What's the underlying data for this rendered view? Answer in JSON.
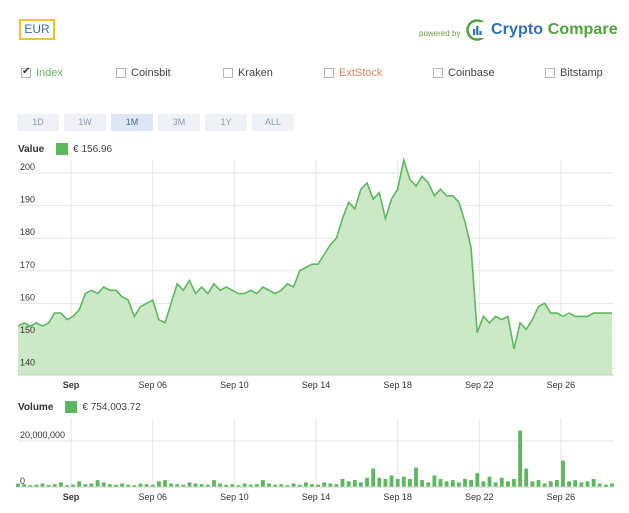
{
  "currency": "EUR",
  "powered_by": "powered by",
  "brand": {
    "part1": "Crypto",
    "part2": "Compare"
  },
  "exchanges": [
    {
      "label": "Index",
      "checked": true,
      "color": "#5cb85c"
    },
    {
      "label": "Coinsbit",
      "checked": false,
      "color": "#444444"
    },
    {
      "label": "Kraken",
      "checked": false,
      "color": "#444444"
    },
    {
      "label": "ExtStock",
      "checked": false,
      "color": "#e8825a"
    },
    {
      "label": "Coinbase",
      "checked": false,
      "color": "#444444"
    },
    {
      "label": "Bitstamp",
      "checked": false,
      "color": "#444444"
    }
  ],
  "ranges": [
    {
      "label": "1D",
      "active": false
    },
    {
      "label": "1W",
      "active": false
    },
    {
      "label": "1M",
      "active": true
    },
    {
      "label": "3M",
      "active": false
    },
    {
      "label": "1Y",
      "active": false
    },
    {
      "label": "ALL",
      "active": false
    }
  ],
  "value_legend": {
    "label": "Value",
    "value": "€  156.96"
  },
  "volume_legend": {
    "label": "Volume",
    "value": "€  754,003.72"
  },
  "chart_data": [
    {
      "type": "area",
      "name": "price",
      "ylim": [
        138,
        204
      ],
      "yticks": [
        140,
        150,
        160,
        170,
        180,
        190,
        200
      ],
      "xlim": [
        -1.6,
        27.6
      ],
      "xticks": [
        {
          "label": "Sep",
          "x": 1
        },
        {
          "label": "Sep 06",
          "x": 5
        },
        {
          "label": "Sep 10",
          "x": 9
        },
        {
          "label": "Sep 14",
          "x": 13
        },
        {
          "label": "Sep 18",
          "x": 17
        },
        {
          "label": "Sep 22",
          "x": 21
        },
        {
          "label": "Sep 26",
          "x": 25
        }
      ],
      "grid": true,
      "x": [
        -1.6,
        -1.3,
        -1.0,
        -0.7,
        -0.4,
        -0.1,
        0.2,
        0.5,
        0.8,
        1.1,
        1.4,
        1.7,
        2.0,
        2.3,
        2.6,
        2.9,
        3.2,
        3.5,
        3.8,
        4.1,
        4.4,
        4.7,
        5.0,
        5.3,
        5.6,
        5.9,
        6.2,
        6.5,
        6.8,
        7.1,
        7.4,
        7.7,
        8.0,
        8.3,
        8.6,
        8.9,
        9.2,
        9.5,
        9.8,
        10.1,
        10.4,
        10.7,
        11.0,
        11.3,
        11.6,
        11.9,
        12.2,
        12.5,
        12.8,
        13.1,
        13.4,
        13.7,
        14.0,
        14.3,
        14.6,
        14.9,
        15.2,
        15.5,
        15.8,
        16.1,
        16.4,
        16.7,
        17.0,
        17.3,
        17.6,
        17.9,
        18.2,
        18.5,
        18.8,
        19.1,
        19.4,
        19.7,
        20.0,
        20.3,
        20.6,
        20.9,
        21.2,
        21.5,
        21.8,
        22.1,
        22.4,
        22.7,
        23.0,
        23.3,
        23.6,
        23.9,
        24.2,
        24.5,
        24.8,
        25.1,
        25.4,
        25.7,
        26.0,
        26.3,
        26.6,
        26.9,
        27.2,
        27.5
      ],
      "values": [
        153,
        154,
        153,
        154,
        153,
        154,
        157,
        157,
        155,
        156,
        158,
        163,
        164,
        163,
        165,
        164,
        164,
        162,
        161,
        156,
        159,
        160,
        161,
        155,
        154,
        160,
        166,
        164,
        167,
        163,
        165,
        163,
        166,
        164,
        165,
        164,
        163,
        163,
        164,
        163,
        165,
        164,
        163,
        164,
        166,
        165,
        170,
        171,
        172,
        172,
        175,
        178,
        180,
        186,
        191,
        189,
        195,
        197,
        192,
        194,
        186,
        192,
        195,
        204,
        198,
        196,
        199,
        197,
        193,
        195,
        193,
        193,
        191,
        185,
        177,
        151,
        156,
        154,
        156,
        155,
        156,
        146,
        154,
        152,
        155,
        159,
        160,
        157,
        157,
        156,
        157,
        156,
        156,
        156,
        157,
        157,
        157,
        157
      ]
    },
    {
      "type": "bar",
      "name": "volume",
      "ylim": [
        0,
        30000000
      ],
      "yticks": [
        {
          "label": "0",
          "value": 0
        },
        {
          "label": "20,000,000",
          "value": 20000000
        }
      ],
      "xlim": [
        -1.6,
        27.6
      ],
      "xticks": [
        {
          "label": "Sep",
          "x": 1
        },
        {
          "label": "Sep 06",
          "x": 5
        },
        {
          "label": "Sep 10",
          "x": 9
        },
        {
          "label": "Sep 14",
          "x": 13
        },
        {
          "label": "Sep 18",
          "x": 17
        },
        {
          "label": "Sep 22",
          "x": 21
        },
        {
          "label": "Sep 26",
          "x": 25
        }
      ],
      "x": [
        -1.6,
        -1.3,
        -1.0,
        -0.7,
        -0.4,
        -0.1,
        0.2,
        0.5,
        0.8,
        1.1,
        1.4,
        1.7,
        2.0,
        2.3,
        2.6,
        2.9,
        3.2,
        3.5,
        3.8,
        4.1,
        4.4,
        4.7,
        5.0,
        5.3,
        5.6,
        5.9,
        6.2,
        6.5,
        6.8,
        7.1,
        7.4,
        7.7,
        8.0,
        8.3,
        8.6,
        8.9,
        9.2,
        9.5,
        9.8,
        10.1,
        10.4,
        10.7,
        11.0,
        11.3,
        11.6,
        11.9,
        12.2,
        12.5,
        12.8,
        13.1,
        13.4,
        13.7,
        14.0,
        14.3,
        14.6,
        14.9,
        15.2,
        15.5,
        15.8,
        16.1,
        16.4,
        16.7,
        17.0,
        17.3,
        17.6,
        17.9,
        18.2,
        18.5,
        18.8,
        19.1,
        19.4,
        19.7,
        20.0,
        20.3,
        20.6,
        20.9,
        21.2,
        21.5,
        21.8,
        22.1,
        22.4,
        22.7,
        23.0,
        23.3,
        23.6,
        23.9,
        24.2,
        24.5,
        24.8,
        25.1,
        25.4,
        25.7,
        26.0,
        26.3,
        26.6,
        26.9,
        27.2,
        27.5
      ],
      "values": [
        1500000,
        1200000,
        800000,
        1000000,
        1500000,
        900000,
        1200000,
        2000000,
        800000,
        1000000,
        2500000,
        1200000,
        1500000,
        3000000,
        2000000,
        1200000,
        1000000,
        1500000,
        1000000,
        800000,
        1500000,
        1200000,
        1000000,
        2500000,
        3000000,
        1500000,
        1200000,
        1000000,
        2000000,
        1500000,
        1200000,
        1000000,
        3000000,
        1500000,
        1000000,
        1200000,
        800000,
        1500000,
        1000000,
        1200000,
        3000000,
        1500000,
        1000000,
        1200000,
        800000,
        1500000,
        1000000,
        2000000,
        1200000,
        1000000,
        2000000,
        1500000,
        1200000,
        3500000,
        2500000,
        3000000,
        2000000,
        4000000,
        8000000,
        4000000,
        3500000,
        5000000,
        3500000,
        4500000,
        3500000,
        8500000,
        3000000,
        2000000,
        5000000,
        3500000,
        2500000,
        3000000,
        2000000,
        3500000,
        3000000,
        6000000,
        2500000,
        4500000,
        2000000,
        4000000,
        2500000,
        3500000,
        24500000,
        8000000,
        2500000,
        3000000,
        1500000,
        2500000,
        3000000,
        11500000,
        2500000,
        3000000,
        2000000,
        2500000,
        3500000,
        1500000,
        1000000,
        1500000
      ]
    }
  ]
}
